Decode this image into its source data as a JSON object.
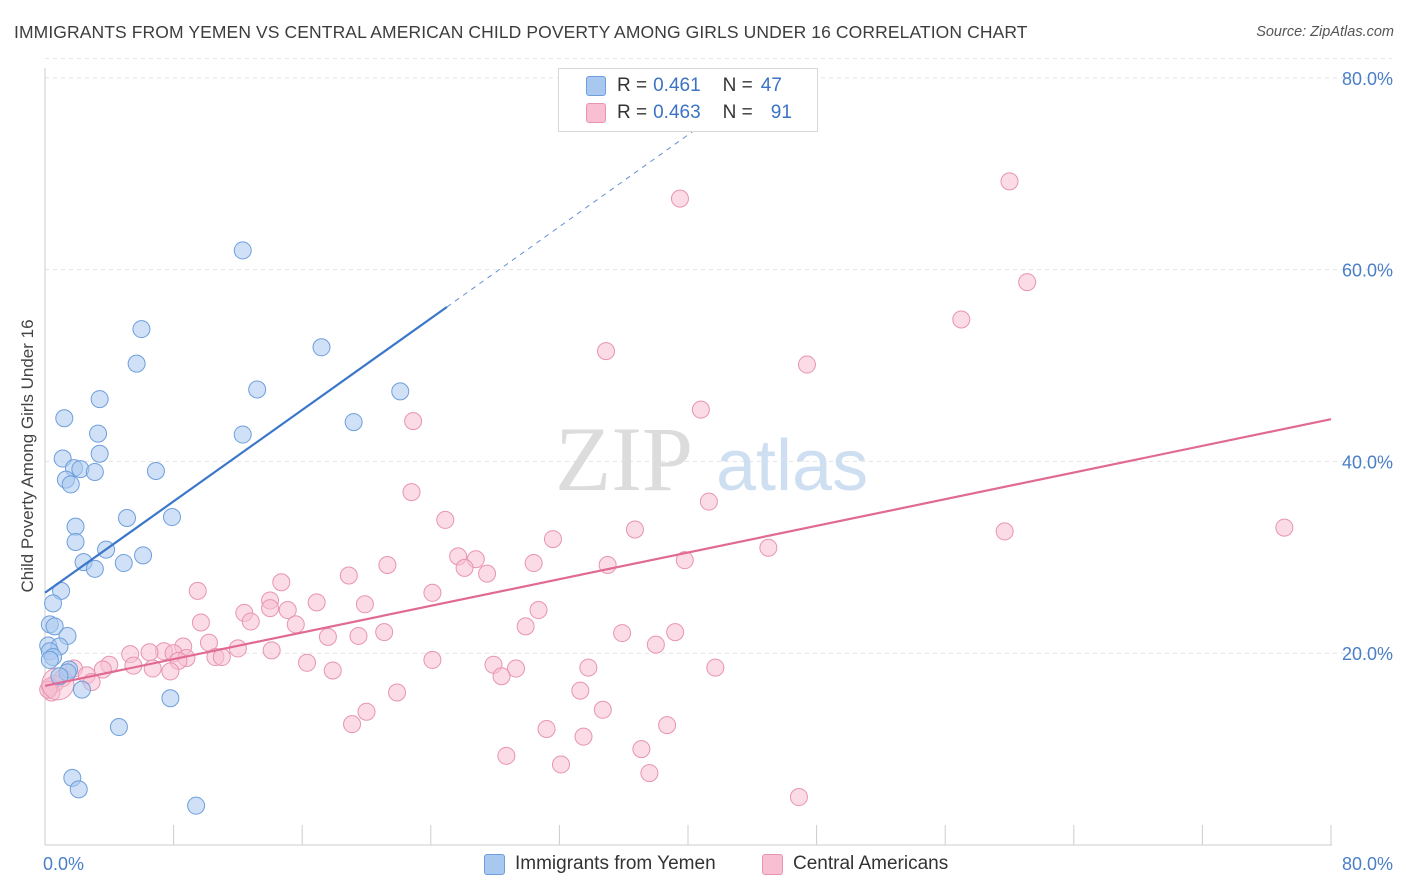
{
  "header": {
    "title": "IMMIGRANTS FROM YEMEN VS CENTRAL AMERICAN CHILD POVERTY AMONG GIRLS UNDER 16 CORRELATION CHART",
    "source": "Source: ZipAtlas.com"
  },
  "legend": {
    "rows": [
      {
        "r_label": "R =",
        "r_value": "0.461",
        "n_label": "N =",
        "n_value": "47"
      },
      {
        "r_label": "R =",
        "r_value": "0.463",
        "n_label": "N =",
        "n_value": "91"
      }
    ]
  },
  "bottom_legend": {
    "series1": "Immigrants from Yemen",
    "series2": "Central Americans"
  },
  "watermark": {
    "part1": "ZIP",
    "part2": "atlas"
  },
  "colors": {
    "blue_fill": "#a9c8f0",
    "blue_stroke": "#6e9fdc",
    "blue_line": "#3a76c9",
    "pink_fill": "#f7bfd1",
    "pink_stroke": "#e894b0",
    "pink_line": "#e06a94",
    "axis_text": "#4a7fc8",
    "grid": "#e2e2e2"
  },
  "chart_data": {
    "type": "scatter",
    "title": "IMMIGRANTS FROM YEMEN VS CENTRAL AMERICAN CHILD POVERTY AMONG GIRLS UNDER 16 CORRELATION CHART",
    "xlabel": "",
    "ylabel": "Child Poverty Among Girls Under 16",
    "xlim": [
      0,
      80
    ],
    "ylim": [
      0,
      82
    ],
    "x_tick_labels": [
      "0.0%",
      "80.0%"
    ],
    "y_tick_labels": [
      "20.0%",
      "40.0%",
      "60.0%",
      "80.0%"
    ],
    "y_ticks": [
      20,
      40,
      60,
      80
    ],
    "grid": true,
    "legend_position": "top-center",
    "series": [
      {
        "name": "Immigrants from Yemen",
        "R": 0.461,
        "N": 47,
        "trend": {
          "x0": 0,
          "y0": 26.3,
          "x1": 25,
          "y1": 56.1,
          "dashed_to_x": 42.3,
          "dashed_to_y": 76.8
        },
        "points": [
          [
            12.3,
            62.0
          ],
          [
            6.0,
            53.8
          ],
          [
            5.7,
            50.2
          ],
          [
            17.2,
            51.9
          ],
          [
            13.2,
            47.5
          ],
          [
            22.1,
            47.3
          ],
          [
            3.4,
            46.5
          ],
          [
            1.2,
            44.5
          ],
          [
            19.2,
            44.1
          ],
          [
            3.3,
            42.9
          ],
          [
            12.3,
            42.8
          ],
          [
            3.4,
            40.8
          ],
          [
            1.1,
            40.3
          ],
          [
            1.8,
            39.3
          ],
          [
            2.2,
            39.2
          ],
          [
            3.1,
            38.9
          ],
          [
            6.9,
            39.0
          ],
          [
            1.3,
            38.1
          ],
          [
            1.6,
            37.6
          ],
          [
            5.1,
            34.1
          ],
          [
            7.9,
            34.2
          ],
          [
            1.9,
            33.2
          ],
          [
            1.9,
            31.6
          ],
          [
            3.8,
            30.8
          ],
          [
            6.1,
            30.2
          ],
          [
            2.4,
            29.5
          ],
          [
            4.9,
            29.4
          ],
          [
            3.1,
            28.8
          ],
          [
            1.0,
            26.5
          ],
          [
            0.5,
            25.2
          ],
          [
            0.3,
            23.0
          ],
          [
            0.6,
            22.8
          ],
          [
            1.4,
            21.8
          ],
          [
            0.2,
            20.8
          ],
          [
            0.9,
            20.7
          ],
          [
            0.3,
            20.2
          ],
          [
            0.5,
            19.6
          ],
          [
            1.5,
            18.3
          ],
          [
            1.4,
            18.0
          ],
          [
            0.9,
            17.6
          ],
          [
            2.3,
            16.2
          ],
          [
            7.8,
            15.3
          ],
          [
            4.6,
            12.3
          ],
          [
            1.7,
            7.0
          ],
          [
            2.1,
            5.8
          ],
          [
            9.4,
            4.1
          ],
          [
            0.3,
            19.3
          ]
        ]
      },
      {
        "name": "Central Americans",
        "R": 0.463,
        "N": 91,
        "trend": {
          "x0": 0,
          "y0": 16.6,
          "x1": 80,
          "y1": 44.4
        },
        "points": [
          [
            60.0,
            69.2
          ],
          [
            39.5,
            67.4
          ],
          [
            61.1,
            58.7
          ],
          [
            57.0,
            54.8
          ],
          [
            34.9,
            51.5
          ],
          [
            47.4,
            50.1
          ],
          [
            40.8,
            45.4
          ],
          [
            22.9,
            44.2
          ],
          [
            22.8,
            36.8
          ],
          [
            41.3,
            35.8
          ],
          [
            24.9,
            33.9
          ],
          [
            77.1,
            33.1
          ],
          [
            36.7,
            32.9
          ],
          [
            59.7,
            32.7
          ],
          [
            31.6,
            31.9
          ],
          [
            45.0,
            31.0
          ],
          [
            25.7,
            30.1
          ],
          [
            26.8,
            29.8
          ],
          [
            39.8,
            29.7
          ],
          [
            35.0,
            29.2
          ],
          [
            21.3,
            29.2
          ],
          [
            30.4,
            29.4
          ],
          [
            26.1,
            28.9
          ],
          [
            27.5,
            28.3
          ],
          [
            18.9,
            28.1
          ],
          [
            14.7,
            27.4
          ],
          [
            9.5,
            26.5
          ],
          [
            24.1,
            26.3
          ],
          [
            14.0,
            25.5
          ],
          [
            16.9,
            25.3
          ],
          [
            19.9,
            25.1
          ],
          [
            14.0,
            24.7
          ],
          [
            15.1,
            24.5
          ],
          [
            30.7,
            24.5
          ],
          [
            12.4,
            24.2
          ],
          [
            9.7,
            23.2
          ],
          [
            12.8,
            23.3
          ],
          [
            15.6,
            23.0
          ],
          [
            29.9,
            22.8
          ],
          [
            21.1,
            22.2
          ],
          [
            35.9,
            22.1
          ],
          [
            39.2,
            22.2
          ],
          [
            17.6,
            21.7
          ],
          [
            19.5,
            21.8
          ],
          [
            10.2,
            21.1
          ],
          [
            38.0,
            20.9
          ],
          [
            8.6,
            20.7
          ],
          [
            12.0,
            20.5
          ],
          [
            14.1,
            20.3
          ],
          [
            7.4,
            20.2
          ],
          [
            5.3,
            19.9
          ],
          [
            8.0,
            20.0
          ],
          [
            6.5,
            20.1
          ],
          [
            10.6,
            19.6
          ],
          [
            11.0,
            19.6
          ],
          [
            8.8,
            19.5
          ],
          [
            8.3,
            19.2
          ],
          [
            24.1,
            19.3
          ],
          [
            16.3,
            19.0
          ],
          [
            27.9,
            18.8
          ],
          [
            4.0,
            18.8
          ],
          [
            5.5,
            18.7
          ],
          [
            6.7,
            18.4
          ],
          [
            29.3,
            18.4
          ],
          [
            33.8,
            18.5
          ],
          [
            41.7,
            18.5
          ],
          [
            3.6,
            18.3
          ],
          [
            17.9,
            18.2
          ],
          [
            1.8,
            18.4
          ],
          [
            7.8,
            18.1
          ],
          [
            2.6,
            17.7
          ],
          [
            28.4,
            17.6
          ],
          [
            1.1,
            17.4
          ],
          [
            2.9,
            17.0
          ],
          [
            0.6,
            16.8
          ],
          [
            0.3,
            16.5
          ],
          [
            33.3,
            16.1
          ],
          [
            21.9,
            15.9
          ],
          [
            34.7,
            14.1
          ],
          [
            20.0,
            13.9
          ],
          [
            19.1,
            12.6
          ],
          [
            38.7,
            12.5
          ],
          [
            31.2,
            12.1
          ],
          [
            33.5,
            11.3
          ],
          [
            37.1,
            10.0
          ],
          [
            28.7,
            9.3
          ],
          [
            32.1,
            8.4
          ],
          [
            37.6,
            7.5
          ],
          [
            46.9,
            5.0
          ],
          [
            0.4,
            15.9
          ],
          [
            0.2,
            16.2
          ]
        ]
      }
    ]
  },
  "axes": {
    "ylabel": "Child Poverty Among Girls Under 16",
    "x_min_label": "0.0%",
    "x_max_label": "80.0%",
    "y_labels": [
      "20.0%",
      "40.0%",
      "60.0%",
      "80.0%"
    ]
  }
}
